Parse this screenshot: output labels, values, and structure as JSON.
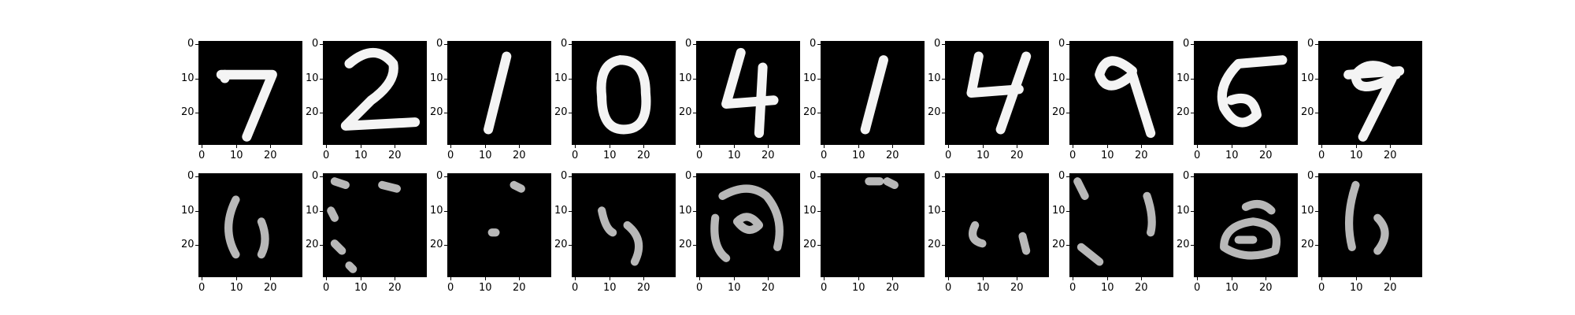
{
  "figure": {
    "background": "#ffffff",
    "image_colormap": "gray",
    "axis_ticks": {
      "x": [
        "0",
        "10",
        "20"
      ],
      "y": [
        "0",
        "10",
        "20"
      ]
    },
    "rows": [
      {
        "name": "top-row",
        "panels": [
          {
            "content": "digit-7"
          },
          {
            "content": "digit-2"
          },
          {
            "content": "digit-1"
          },
          {
            "content": "digit-0"
          },
          {
            "content": "digit-4"
          },
          {
            "content": "digit-1"
          },
          {
            "content": "digit-4"
          },
          {
            "content": "digit-9"
          },
          {
            "content": "digit-5"
          },
          {
            "content": "digit-9"
          }
        ]
      },
      {
        "name": "bottom-row",
        "panels": [
          {
            "content": "blurry-reconstruction"
          },
          {
            "content": "blurry-reconstruction"
          },
          {
            "content": "blurry-reconstruction"
          },
          {
            "content": "blurry-reconstruction"
          },
          {
            "content": "blurry-reconstruction"
          },
          {
            "content": "blurry-reconstruction"
          },
          {
            "content": "blurry-reconstruction"
          },
          {
            "content": "blurry-reconstruction"
          },
          {
            "content": "blurry-reconstruction"
          },
          {
            "content": "blurry-reconstruction"
          }
        ]
      }
    ]
  }
}
